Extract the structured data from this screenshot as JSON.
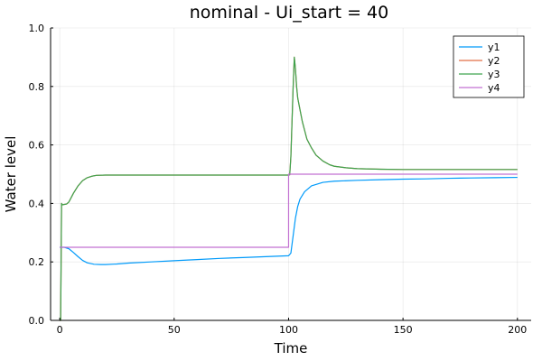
{
  "chart_data": {
    "type": "line",
    "title": "nominal - Ui_start = 40",
    "xlabel": "Time",
    "ylabel": "Water level",
    "xlim": [
      -4,
      206
    ],
    "ylim": [
      0,
      1
    ],
    "xticks": [
      0,
      50,
      100,
      150,
      200
    ],
    "yticks": [
      0.0,
      0.2,
      0.4,
      0.6,
      0.8,
      1.0
    ],
    "xtick_labels": [
      "0",
      "50",
      "100",
      "150",
      "200"
    ],
    "ytick_labels": [
      "0.0",
      "0.2",
      "0.4",
      "0.6",
      "0.8",
      "1.0"
    ],
    "grid": true,
    "legend_position": "top-right",
    "series": [
      {
        "name": "y1",
        "color": "#009AFA",
        "x": [
          0,
          2,
          4,
          6,
          8,
          10,
          12,
          15,
          18,
          20,
          25,
          30,
          40,
          50,
          60,
          70,
          80,
          90,
          100,
          101,
          102,
          103,
          104,
          105,
          107,
          110,
          115,
          120,
          130,
          140,
          150,
          160,
          170,
          180,
          190,
          200
        ],
        "y": [
          0.25,
          0.25,
          0.245,
          0.232,
          0.218,
          0.205,
          0.197,
          0.192,
          0.191,
          0.191,
          0.193,
          0.196,
          0.2,
          0.204,
          0.208,
          0.212,
          0.215,
          0.218,
          0.221,
          0.23,
          0.29,
          0.35,
          0.39,
          0.415,
          0.44,
          0.46,
          0.472,
          0.476,
          0.479,
          0.481,
          0.483,
          0.484,
          0.486,
          0.487,
          0.488,
          0.489
        ]
      },
      {
        "name": "y2",
        "color": "#E26F46",
        "x": [
          0,
          0.4,
          0.8,
          1,
          3,
          4,
          5,
          6,
          8,
          10,
          12,
          14,
          16,
          20,
          30,
          40,
          50,
          60,
          70,
          80,
          90,
          100,
          100.5,
          101,
          102,
          102.5,
          103,
          103.5,
          104,
          105,
          106,
          107,
          108,
          110,
          112,
          115,
          118,
          120,
          125,
          130,
          140,
          150,
          160,
          170,
          180,
          190,
          200
        ],
        "y": [
          0.0,
          0.0,
          0.4,
          0.395,
          0.398,
          0.405,
          0.42,
          0.435,
          0.46,
          0.478,
          0.488,
          0.493,
          0.496,
          0.497,
          0.497,
          0.497,
          0.497,
          0.497,
          0.497,
          0.497,
          0.497,
          0.497,
          0.498,
          0.56,
          0.8,
          0.9,
          0.86,
          0.8,
          0.76,
          0.72,
          0.68,
          0.65,
          0.62,
          0.59,
          0.565,
          0.545,
          0.532,
          0.527,
          0.522,
          0.519,
          0.517,
          0.516,
          0.516,
          0.516,
          0.516,
          0.516,
          0.516
        ]
      },
      {
        "name": "y3",
        "color": "#3DA44E",
        "x": [
          0,
          0.4,
          0.8,
          1,
          3,
          4,
          5,
          6,
          8,
          10,
          12,
          14,
          16,
          20,
          30,
          40,
          50,
          60,
          70,
          80,
          90,
          100,
          100.5,
          101,
          102,
          102.5,
          103,
          103.5,
          104,
          105,
          106,
          107,
          108,
          110,
          112,
          115,
          118,
          120,
          125,
          130,
          140,
          150,
          160,
          170,
          180,
          190,
          200
        ],
        "y": [
          0.0,
          0.0,
          0.4,
          0.395,
          0.398,
          0.405,
          0.42,
          0.435,
          0.46,
          0.478,
          0.488,
          0.493,
          0.496,
          0.497,
          0.497,
          0.497,
          0.497,
          0.497,
          0.497,
          0.497,
          0.497,
          0.497,
          0.498,
          0.56,
          0.8,
          0.9,
          0.86,
          0.8,
          0.76,
          0.72,
          0.68,
          0.65,
          0.62,
          0.59,
          0.565,
          0.545,
          0.532,
          0.527,
          0.522,
          0.519,
          0.517,
          0.516,
          0.516,
          0.516,
          0.516,
          0.516,
          0.516
        ]
      },
      {
        "name": "y4",
        "color": "#C271D2",
        "x": [
          0,
          100,
          100,
          200
        ],
        "y": [
          0.25,
          0.25,
          0.5,
          0.5
        ]
      }
    ]
  }
}
